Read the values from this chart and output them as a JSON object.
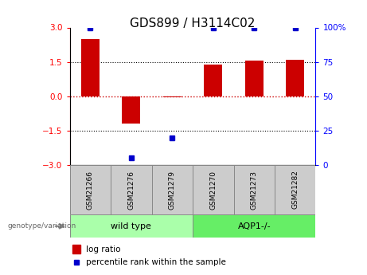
{
  "title": "GDS899 / H3114C02",
  "samples": [
    "GSM21266",
    "GSM21276",
    "GSM21279",
    "GSM21270",
    "GSM21273",
    "GSM21282"
  ],
  "log_ratio": [
    2.5,
    -1.2,
    -0.05,
    1.4,
    1.55,
    1.6
  ],
  "percentile_rank": [
    99,
    5,
    20,
    99,
    99,
    99
  ],
  "percentile_rank_display": [
    100,
    5,
    20,
    100,
    100,
    100
  ],
  "ylim_left": [
    -3,
    3
  ],
  "ylim_right": [
    0,
    100
  ],
  "yticks_left": [
    -3,
    -1.5,
    0,
    1.5,
    3
  ],
  "yticks_right": [
    0,
    25,
    50,
    75,
    100
  ],
  "ytick_labels_right": [
    "0",
    "25",
    "50",
    "75",
    "100%"
  ],
  "bar_color": "#cc0000",
  "dot_color": "#0000cc",
  "zero_line_color": "#cc0000",
  "hline_color": "#000000",
  "group1_label": "wild type",
  "group2_label": "AQP1-/-",
  "group1_color": "#aaffaa",
  "group2_color": "#66ee66",
  "sample_box_color": "#cccccc",
  "genotype_label": "genotype/variation",
  "legend_log": "log ratio",
  "legend_pct": "percentile rank within the sample",
  "title_fontsize": 11,
  "axis_fontsize": 7.5,
  "label_fontsize": 7,
  "bar_width": 0.45
}
